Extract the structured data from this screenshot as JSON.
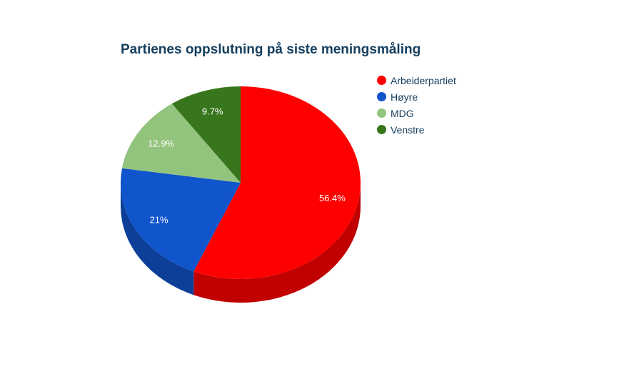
{
  "chart_data": {
    "type": "pie",
    "title": "Partienes oppslutning på siste meningsmåling",
    "categories": [
      "Arbeiderpartiet",
      "Høyre",
      "MDG",
      "Venstre"
    ],
    "values": [
      56.4,
      21,
      12.9,
      9.7
    ],
    "slice_labels": [
      "56.4%",
      "21%",
      "12.9%",
      "9.7%"
    ],
    "colors": [
      "#ff0000",
      "#1155cc",
      "#93c47d",
      "#38761d"
    ],
    "side_colors": [
      "#c10000",
      "#0d3f99",
      "#6e935d",
      "#2a5815"
    ],
    "style": "3d",
    "legend_position": "right"
  }
}
